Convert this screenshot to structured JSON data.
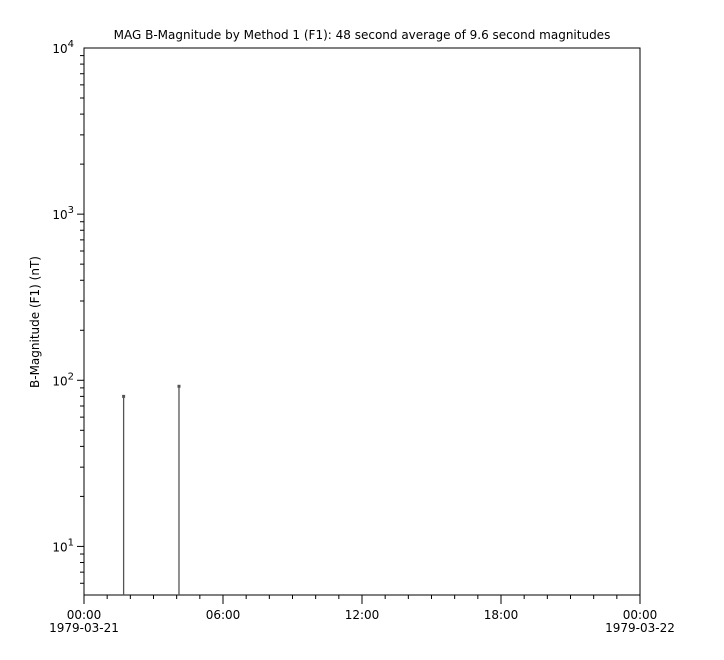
{
  "chart_data": {
    "type": "scatter",
    "title": "MAG  B-Magnitude by Method 1 (F1): 48 second average of 9.6 second magnitudes",
    "xlabel": "",
    "ylabel": "B-Magnitude (F1) (nT)",
    "yscale": "log",
    "ylim": [
      5.1,
      10000
    ],
    "xlim": [
      "1979-03-21 00:00",
      "1979-03-22 00:00"
    ],
    "x_ticks": [
      {
        "time": "00:00",
        "date": "1979-03-21",
        "hours": 0
      },
      {
        "time": "06:00",
        "date": "",
        "hours": 6
      },
      {
        "time": "12:00",
        "date": "",
        "hours": 12
      },
      {
        "time": "18:00",
        "date": "",
        "hours": 18
      },
      {
        "time": "00:00",
        "date": "1979-03-22",
        "hours": 24
      }
    ],
    "y_ticks": [
      {
        "base": "10",
        "exp": "1",
        "value": 10
      },
      {
        "base": "10",
        "exp": "2",
        "value": 100
      },
      {
        "base": "10",
        "exp": "3",
        "value": 1000
      },
      {
        "base": "10",
        "exp": "4",
        "value": 10000
      }
    ],
    "grid": false,
    "series": [
      {
        "points": [
          {
            "x": "1979-03-21 01:43",
            "hours": 1.71,
            "y": 80
          },
          {
            "x": "1979-03-21 04:06",
            "hours": 4.1,
            "y": 92
          }
        ],
        "color": "#555555"
      }
    ]
  }
}
